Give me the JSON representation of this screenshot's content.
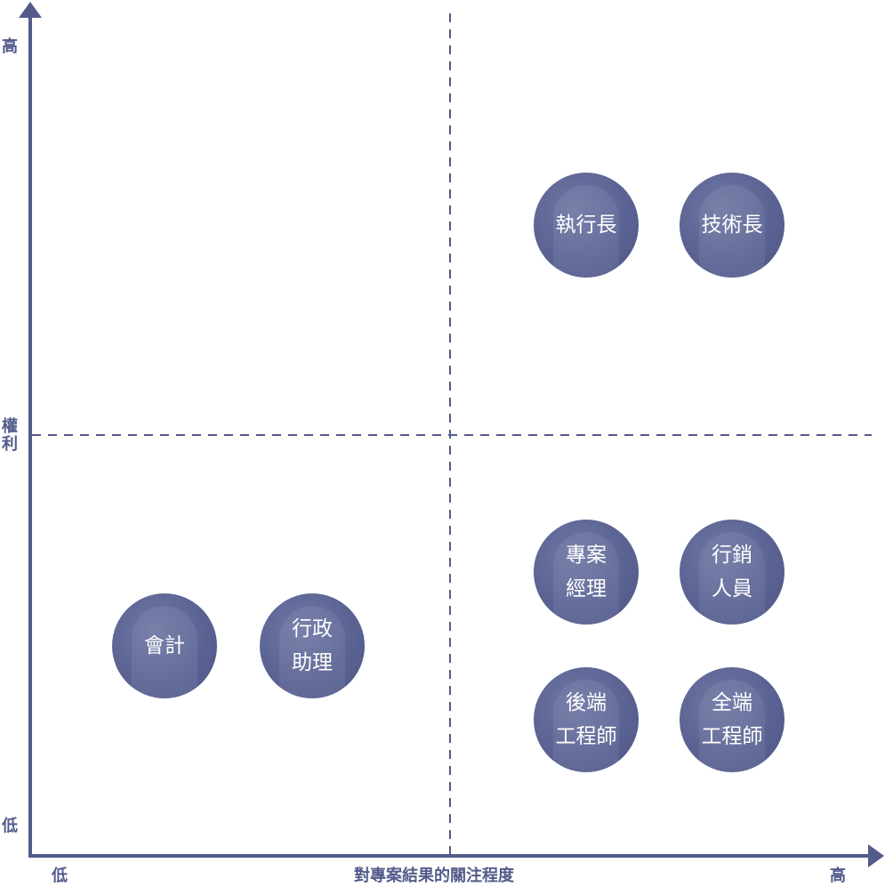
{
  "y_axis": {
    "title_line1": "權",
    "title_line2": "利",
    "high_label": "高",
    "low_label": "低"
  },
  "x_axis": {
    "title": "對專案結果的關注程度",
    "low_label": "低",
    "high_label": "高"
  },
  "colors": {
    "axis": "#525b8a",
    "dashed": "#525b8a",
    "circle": "#5a6393",
    "circle_text": "#ffffff"
  },
  "quadrants": {
    "high_power_high_interest": [
      {
        "line1": "執行長",
        "line2": ""
      },
      {
        "line1": "技術長",
        "line2": ""
      }
    ],
    "low_power_high_interest": [
      {
        "line1": "專案",
        "line2": "經理"
      },
      {
        "line1": "行銷",
        "line2": "人員"
      },
      {
        "line1": "後端",
        "line2": "工程師"
      },
      {
        "line1": "全端",
        "line2": "工程師"
      }
    ],
    "low_power_low_interest": [
      {
        "line1": "會計",
        "line2": ""
      },
      {
        "line1": "行政",
        "line2": "助理"
      }
    ]
  }
}
